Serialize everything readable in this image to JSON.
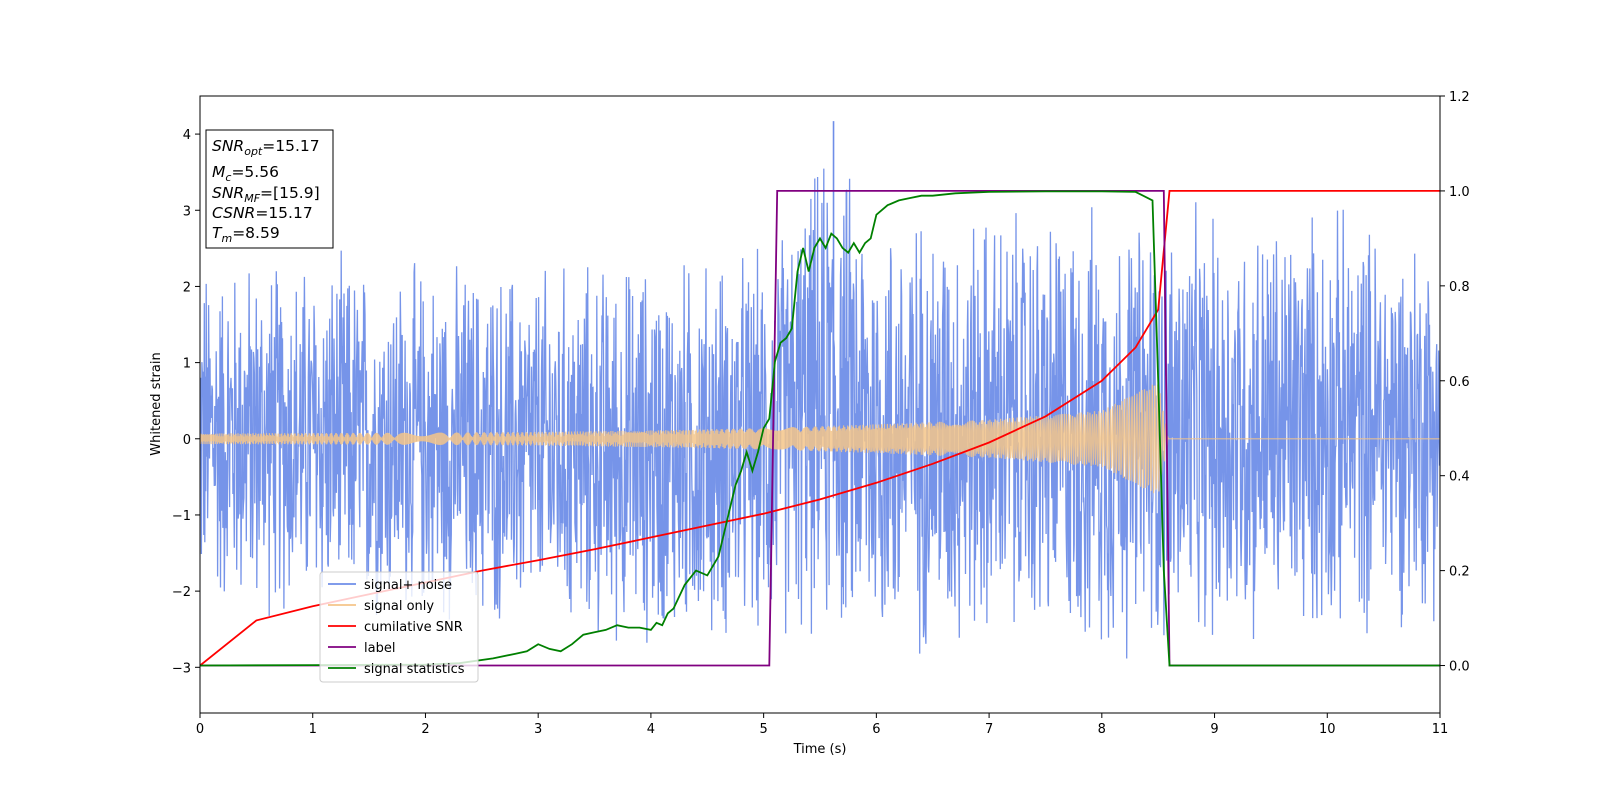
{
  "chart_data": {
    "type": "line",
    "title": "",
    "xlabel": "Time (s)",
    "ylabel": "Whitened strain",
    "xlim": [
      0,
      11
    ],
    "ylim_left": [
      -3.6,
      4.5
    ],
    "ylim_right": [
      -0.1,
      1.2
    ],
    "x_ticks": [
      "0",
      "1",
      "2",
      "3",
      "4",
      "5",
      "6",
      "7",
      "8",
      "9",
      "10",
      "11"
    ],
    "y_left_ticks": [
      "−3",
      "−2",
      "−1",
      "0",
      "1",
      "2",
      "3",
      "4"
    ],
    "y_right_ticks": [
      "0.0",
      "0.2",
      "0.4",
      "0.6",
      "0.8",
      "1.0",
      "1.2"
    ],
    "grid": false,
    "legend_position": "lower-left",
    "colors": {
      "signal_noise": "#6f8ee8",
      "signal_only": "#f5c58a",
      "cumulative_snr": "#ff0000",
      "label": "#800080",
      "signal_statistics": "#008000"
    },
    "series": [
      {
        "name": "signal+ noise",
        "axis": "left",
        "description_note": "dense whitened noise, roughly within ±2.5 with spikes to 4.17 near t=5.62",
        "envelope": {
          "x": [
            0,
            1,
            2,
            3,
            4,
            5,
            5.6,
            6,
            7,
            8,
            9,
            10,
            11
          ],
          "upper": [
            2.6,
            2.6,
            2.5,
            2.5,
            2.6,
            2.7,
            4.17,
            3.3,
            3.3,
            3.3,
            3.2,
            3.3,
            2.9
          ],
          "lower": [
            -2.5,
            -2.6,
            -2.6,
            -2.8,
            -3.0,
            -2.9,
            -3.0,
            -3.2,
            -3.0,
            -3.2,
            -3.0,
            -2.9,
            -2.5
          ]
        }
      },
      {
        "name": "signal only",
        "axis": "left",
        "envelope": {
          "x": [
            0,
            1,
            2,
            3,
            4,
            5,
            6,
            7,
            8,
            8.5,
            8.59,
            11
          ],
          "amplitude": [
            0.07,
            0.075,
            0.08,
            0.09,
            0.11,
            0.14,
            0.19,
            0.25,
            0.37,
            0.75,
            0.0,
            0.0
          ]
        }
      },
      {
        "name": "cumilative SNR",
        "axis": "right",
        "x": [
          0,
          0.5,
          1,
          1.5,
          2,
          2.5,
          3,
          3.5,
          4,
          4.5,
          5,
          5.5,
          6,
          6.5,
          7,
          7.5,
          8,
          8.3,
          8.5,
          8.6,
          9,
          10,
          11
        ],
        "y": [
          0.0,
          0.095,
          0.125,
          0.15,
          0.175,
          0.2,
          0.222,
          0.245,
          0.27,
          0.295,
          0.32,
          0.35,
          0.385,
          0.425,
          0.47,
          0.525,
          0.6,
          0.67,
          0.75,
          1.0,
          1.0,
          1.0,
          1.0
        ]
      },
      {
        "name": "label",
        "axis": "right",
        "x": [
          0,
          5.05,
          5.12,
          8.55,
          8.6,
          11
        ],
        "y": [
          0.0,
          0.0,
          1.0,
          1.0,
          0.0,
          0.0
        ]
      },
      {
        "name": "signal statistics",
        "axis": "right",
        "x": [
          0,
          1,
          2,
          2.3,
          2.6,
          2.8,
          2.9,
          3.0,
          3.1,
          3.2,
          3.3,
          3.4,
          3.5,
          3.6,
          3.7,
          3.8,
          3.9,
          4.0,
          4.05,
          4.1,
          4.15,
          4.2,
          4.3,
          4.4,
          4.5,
          4.6,
          4.7,
          4.75,
          4.8,
          4.85,
          4.9,
          4.95,
          5.0,
          5.05,
          5.1,
          5.15,
          5.2,
          5.25,
          5.3,
          5.35,
          5.4,
          5.45,
          5.5,
          5.55,
          5.6,
          5.65,
          5.7,
          5.75,
          5.8,
          5.85,
          5.9,
          5.95,
          6.0,
          6.05,
          6.1,
          6.2,
          6.3,
          6.4,
          6.5,
          6.7,
          7.0,
          7.5,
          8.0,
          8.3,
          8.45,
          8.5,
          8.55,
          8.6,
          8.65,
          9,
          10,
          11
        ],
        "y": [
          0.0,
          0.001,
          0.002,
          0.005,
          0.015,
          0.025,
          0.03,
          0.045,
          0.035,
          0.03,
          0.045,
          0.065,
          0.07,
          0.075,
          0.085,
          0.08,
          0.08,
          0.075,
          0.09,
          0.085,
          0.11,
          0.12,
          0.17,
          0.2,
          0.19,
          0.23,
          0.33,
          0.38,
          0.41,
          0.45,
          0.41,
          0.45,
          0.5,
          0.52,
          0.64,
          0.68,
          0.69,
          0.71,
          0.83,
          0.88,
          0.83,
          0.88,
          0.9,
          0.88,
          0.91,
          0.9,
          0.88,
          0.87,
          0.89,
          0.87,
          0.89,
          0.9,
          0.95,
          0.96,
          0.97,
          0.98,
          0.985,
          0.99,
          0.99,
          0.995,
          0.998,
          0.999,
          0.999,
          0.998,
          0.98,
          0.6,
          0.2,
          0.0,
          0.0,
          0.0,
          0.0,
          0.0
        ]
      }
    ],
    "legend": [
      "signal+ noise",
      "signal only",
      "cumilative SNR",
      "label",
      "signal statistics"
    ]
  },
  "info_box": {
    "snr_opt_main": "SNR",
    "snr_opt_sub": "opt",
    "snr_opt_val": "=15.17",
    "mc_main": "M",
    "mc_sub": "c",
    "mc_val": "=5.56",
    "snr_mf_main": "SNR",
    "snr_mf_sub": "MF",
    "snr_mf_val": "=[15.9]",
    "csnr_main": "CSNR",
    "csnr_val": "=15.17",
    "tm_main": "T",
    "tm_sub": "m",
    "tm_val": "=8.59"
  }
}
